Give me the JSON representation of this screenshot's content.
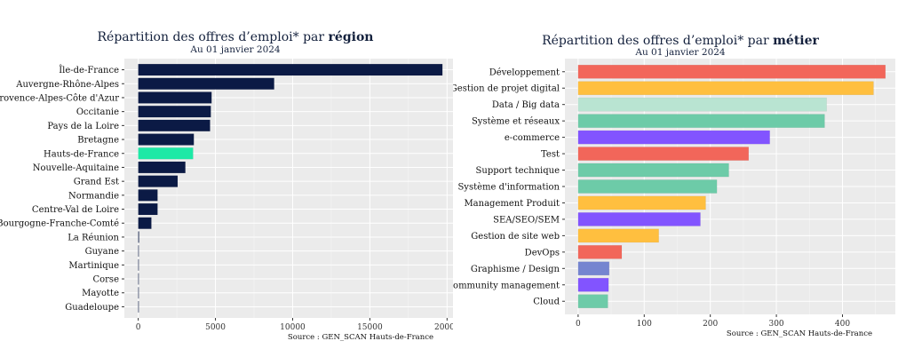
{
  "chart_data": [
    {
      "type": "bar",
      "orientation": "horizontal",
      "title_prefix": "Répartition des offres d’emploi* par ",
      "title_emphasis": "région",
      "subtitle": "Au 01 janvier 2024",
      "caption": "Source : GEN_SCAN Hauts-de-France",
      "xlim": [
        -900,
        20500
      ],
      "x_ticks": [
        0,
        5000,
        10000,
        15000,
        20000
      ],
      "categories": [
        "Île-de-France",
        "Auvergne-Rhône-Alpes",
        "Provence-Alpes-Côte d'Azur",
        "Occitanie",
        "Pays de la Loire",
        "Bretagne",
        "Hauts-de-France",
        "Nouvelle-Aquitaine",
        "Grand Est",
        "Normandie",
        "Centre-Val de Loire",
        "Bourgogne-Franche-Comté",
        "La Réunion",
        "Guyane",
        "Martinique",
        "Corse",
        "Mayotte",
        "Guadeloupe"
      ],
      "values": [
        19700,
        8800,
        4750,
        4700,
        4650,
        3600,
        3550,
        3050,
        2550,
        1250,
        1250,
        850,
        50,
        10,
        10,
        5,
        5,
        5
      ],
      "colors": [
        "#0b1a45",
        "#0b1a45",
        "#0b1a45",
        "#0b1a45",
        "#0b1a45",
        "#0b1a45",
        "#1de9a6",
        "#0b1a45",
        "#0b1a45",
        "#0b1a45",
        "#0b1a45",
        "#0b1a45",
        "#0b1a45",
        "#0b1a45",
        "#0b1a45",
        "#0b1a45",
        "#0b1a45",
        "#0b1a45"
      ],
      "grid": true,
      "legend": "none"
    },
    {
      "type": "bar",
      "orientation": "horizontal",
      "title_prefix": "Répartition des offres d’emploi* par ",
      "title_emphasis": "métier",
      "subtitle": "Au 01 janvier 2024",
      "caption": "Source : GEN_SCAN Hauts-de-France",
      "xlim": [
        -20,
        480
      ],
      "x_ticks": [
        0,
        100,
        200,
        300,
        400
      ],
      "categories": [
        "Développement",
        "Gestion de projet digital",
        "Data / Big data",
        "Système et réseaux",
        "e-commerce",
        "Test",
        "Support technique",
        "Système d'information",
        "Management Produit",
        "SEA/SEO/SEM",
        "Gestion de site web",
        "DevOps",
        "Graphisme / Design",
        "Community management",
        "Cloud"
      ],
      "values": [
        465,
        447,
        376,
        373,
        290,
        258,
        228,
        210,
        193,
        185,
        122,
        66,
        47,
        46,
        45
      ],
      "colors": [
        "#f2665a",
        "#ffbf3f",
        "#b9e4d2",
        "#6dcba8",
        "#8254ff",
        "#f2665a",
        "#6dcba8",
        "#6dcba8",
        "#ffbf3f",
        "#8254ff",
        "#ffbf3f",
        "#f2665a",
        "#7585d0",
        "#8254ff",
        "#6dcba8"
      ],
      "grid": true,
      "legend": "none"
    }
  ]
}
